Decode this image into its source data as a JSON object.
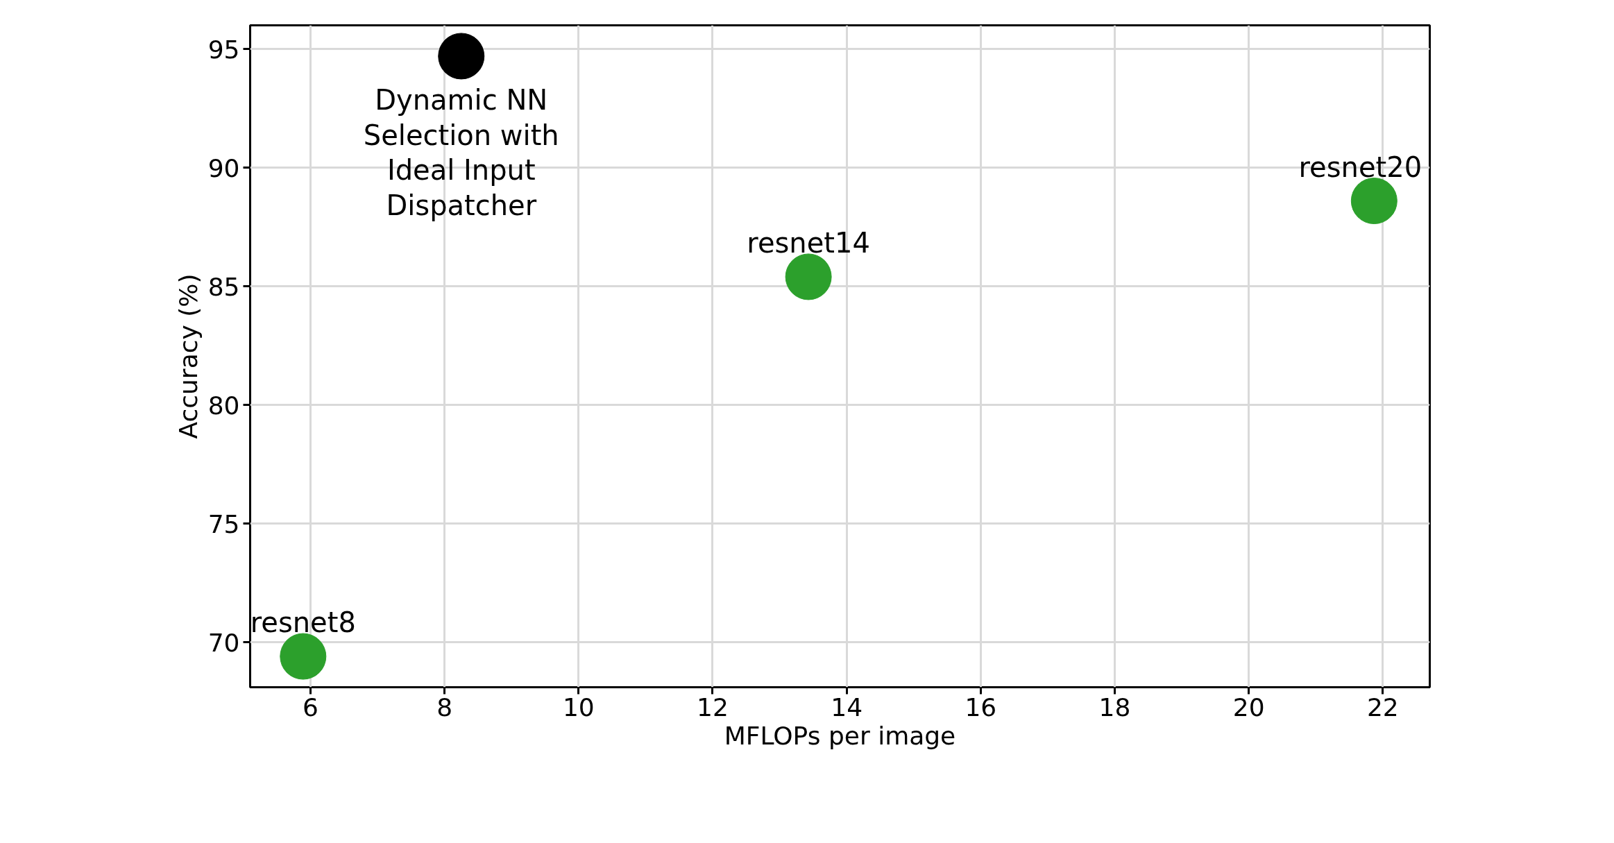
{
  "chart_data": {
    "type": "scatter",
    "xlabel": "MFLOPs per image",
    "ylabel": "Accuracy (%)",
    "series": [
      {
        "color": "#2ca02c",
        "x": [
          5.89,
          13.43,
          21.87
        ],
        "values": [
          69.4,
          85.4,
          88.6
        ]
      },
      {
        "color": "#000000",
        "x": [
          8.25
        ],
        "values": [
          94.7
        ]
      }
    ],
    "xlim": [
      5.1,
      22.7
    ],
    "xticks": [
      6,
      8,
      10,
      12,
      14,
      16,
      18,
      20,
      22
    ],
    "ylim": [
      68.1,
      96
    ],
    "yticks": [
      70,
      75,
      80,
      85,
      90,
      95
    ],
    "grid": true,
    "marker": "circle",
    "annotations": [
      {
        "text": "resnet8",
        "x": 5.89,
        "y": 69.4
      },
      {
        "text": "resnet14",
        "x": 13.43,
        "y": 85.4
      },
      {
        "text": "resnet20",
        "x": 21.87,
        "y": 88.6
      },
      {
        "text": "Dynamic NN\nSelection with\nIdeal Input\nDispatcher",
        "x": 8.25,
        "y": 94.7
      }
    ]
  }
}
